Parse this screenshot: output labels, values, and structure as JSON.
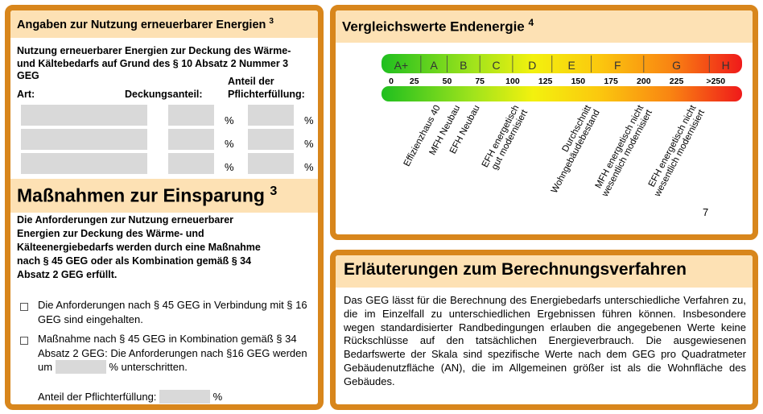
{
  "erneuerbare": {
    "heading": "Angaben zur Nutzung erneuerbarer Energien",
    "heading_sup": "3",
    "text": "Nutzung erneuerbarer Energien zur Deckung des Wärme- und Kältebedarfs auf Grund des § 10 Absatz 2 Nummer 3 GEG",
    "col_art": "Art:",
    "col_deckung": "Deckungsanteil:",
    "col_anteil": "Anteil der Pflichterfüllung:",
    "percent": "%"
  },
  "massnahmen": {
    "heading": "Maßnahmen zur Einsparung",
    "heading_sup": "3",
    "intro": "Die Anforderungen zur Nutzung erneuerbarer Energien zur Deckung des Wärme- und Kälteenergiebedarfs werden durch eine Maßnahme nach § 45 GEG oder als Kombination gemäß § 34 Absatz 2 GEG erfüllt.",
    "option1": "Die Anforderungen nach § 45 GEG in Verbindung mit § 16 GEG sind eingehalten.",
    "option2_a": "Maßnahme nach § 45 GEG in Kombination gemäß § 34 Absatz 2 GEG: Die Anforderungen nach §16 GEG werden um",
    "option2_b": "% unterschritten.",
    "anteil_label": "Anteil der Pflichterfüllung:",
    "percent": "%"
  },
  "vergleich": {
    "heading": "Vergleichswerte Endenergie",
    "heading_sup": "4",
    "classes": [
      "A+",
      "A",
      "B",
      "C",
      "D",
      "E",
      "F",
      "G",
      "H"
    ],
    "ticks": [
      "0",
      "25",
      "50",
      "75",
      "100",
      "125",
      "150",
      "175",
      "200",
      "225",
      ">250"
    ],
    "references": [
      {
        "lines": [
          "Effizienzhaus 40"
        ],
        "value": 40
      },
      {
        "lines": [
          "MFH Neubau"
        ],
        "value": 55
      },
      {
        "lines": [
          "EFH Neubau"
        ],
        "value": 70
      },
      {
        "lines": [
          "EFH energetisch",
          "gut modernisiert"
        ],
        "value": 100
      },
      {
        "lines": [
          "Durchschnitt",
          "Wohngebäudebestand"
        ],
        "value": 155
      },
      {
        "lines": [
          "MFH energetisch nicht",
          "wesentlich modernisiert"
        ],
        "value": 195
      },
      {
        "lines": [
          "EFH energetisch nicht",
          "wesentlich modernisiert"
        ],
        "value": 235
      }
    ],
    "footnote": "7"
  },
  "erlaeuterungen": {
    "heading": "Erläuterungen zum Berechnungsverfahren",
    "text": "Das GEG lässt für die Berechnung des Energiebedarfs unterschiedliche Verfahren zu, die im Einzelfall zu unterschiedlichen Ergebnissen führen können. Insbesondere wegen standardisierter Randbedingungen erlauben die angegebenen Werte keine Rückschlüsse auf den tatsächlichen Energieverbrauch. Die ausgewiesenen Bedarfswerte der Skala sind spezifische Werte nach dem GEG pro Quadratmeter Gebäudenutzfläche (AN), die im Allgemeinen größer ist als die Wohnfläche des Gebäudes."
  }
}
